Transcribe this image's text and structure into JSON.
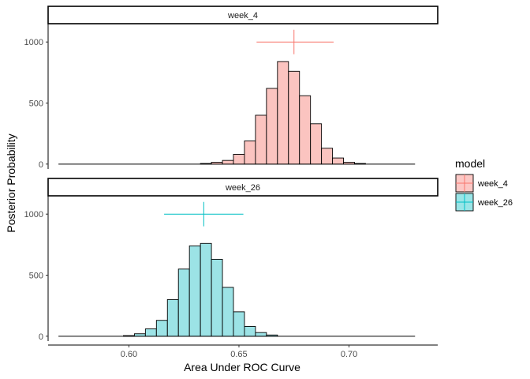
{
  "chart_data": {
    "type": "bar",
    "subtype": "faceted-histogram",
    "xlabel": "Area Under ROC Curve",
    "ylabel": "Posterior Probability",
    "x_ticks": [
      "0.60",
      "0.65",
      "0.70"
    ],
    "x_tick_values": [
      0.6,
      0.65,
      0.7
    ],
    "y_ticks": [
      "0",
      "500",
      "1000"
    ],
    "y_tick_values": [
      0,
      500,
      1000
    ],
    "xlim": [
      0.5633,
      0.7403
    ],
    "ylim": [
      -40,
      1150
    ],
    "bin_width": 0.005,
    "grid": false,
    "legend": {
      "title": "model",
      "position": "right",
      "entries": [
        {
          "label": "week_4",
          "fill": "#F8766D",
          "line": "#F8766D"
        },
        {
          "label": "week_26",
          "fill": "#00BFC4",
          "line": "#00BFC4"
        }
      ]
    },
    "panels": [
      {
        "strip": "week_4",
        "fill": "#FBC4C0",
        "line_color": "#F8766D",
        "baseline": [
          0.568,
          0.73
        ],
        "bins": [
          {
            "x": 0.635,
            "count": 5
          },
          {
            "x": 0.64,
            "count": 15
          },
          {
            "x": 0.645,
            "count": 30
          },
          {
            "x": 0.65,
            "count": 80
          },
          {
            "x": 0.655,
            "count": 190
          },
          {
            "x": 0.66,
            "count": 400
          },
          {
            "x": 0.665,
            "count": 620
          },
          {
            "x": 0.67,
            "count": 840
          },
          {
            "x": 0.675,
            "count": 760
          },
          {
            "x": 0.68,
            "count": 560
          },
          {
            "x": 0.685,
            "count": 330
          },
          {
            "x": 0.69,
            "count": 130
          },
          {
            "x": 0.695,
            "count": 50
          },
          {
            "x": 0.7,
            "count": 15
          },
          {
            "x": 0.705,
            "count": 5
          }
        ],
        "point_estimate": {
          "x": 0.675,
          "y": 1000,
          "x_range": [
            0.658,
            0.693
          ],
          "y_range": [
            900,
            1100
          ]
        }
      },
      {
        "strip": "week_26",
        "fill": "#9CE3E6",
        "line_color": "#00BFC4",
        "baseline": [
          0.568,
          0.73
        ],
        "bins": [
          {
            "x": 0.6,
            "count": 5
          },
          {
            "x": 0.605,
            "count": 20
          },
          {
            "x": 0.61,
            "count": 60
          },
          {
            "x": 0.615,
            "count": 130
          },
          {
            "x": 0.62,
            "count": 300
          },
          {
            "x": 0.625,
            "count": 550
          },
          {
            "x": 0.63,
            "count": 740
          },
          {
            "x": 0.635,
            "count": 760
          },
          {
            "x": 0.64,
            "count": 630
          },
          {
            "x": 0.645,
            "count": 400
          },
          {
            "x": 0.65,
            "count": 200
          },
          {
            "x": 0.655,
            "count": 80
          },
          {
            "x": 0.66,
            "count": 30
          },
          {
            "x": 0.665,
            "count": 10
          }
        ],
        "point_estimate": {
          "x": 0.634,
          "y": 1000,
          "x_range": [
            0.616,
            0.652
          ],
          "y_range": [
            900,
            1100
          ]
        }
      }
    ]
  }
}
